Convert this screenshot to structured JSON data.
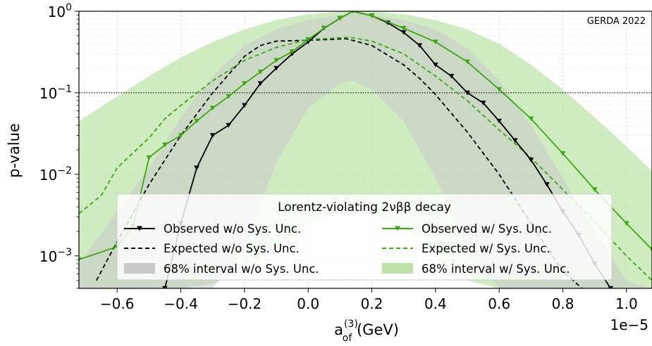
{
  "chart_data": {
    "type": "line",
    "annotation": "GERDA 2022",
    "xlabel": "a",
    "xlabel_sup": "(3)",
    "xlabel_sub": "of",
    "xlabel_unit": " (GeV)",
    "ylabel": "p-value",
    "x_offset_label": "1e−5",
    "xlim": [
      -0.72,
      1.08
    ],
    "ylim": [
      0.0004,
      1.0
    ],
    "yscale": "log",
    "xticks": [
      -0.6,
      -0.4,
      -0.2,
      0.0,
      0.2,
      0.4,
      0.6,
      0.8,
      1.0
    ],
    "xtick_labels": [
      "−0.6",
      "−0.4",
      "−0.2",
      "0.0",
      "0.2",
      "0.4",
      "0.6",
      "0.8",
      "1.0"
    ],
    "yticks": [
      {
        "value": 1,
        "base": "10",
        "exp": "0"
      },
      {
        "value": 0.1,
        "base": "10",
        "exp": "−1"
      },
      {
        "value": 0.01,
        "base": "10",
        "exp": "−2"
      },
      {
        "value": 0.001,
        "base": "10",
        "exp": "−3"
      }
    ],
    "threshold_line": 0.1,
    "grid": true,
    "legend": {
      "title": "Lorentz-violating 2νββ decay",
      "placement": "lower-center",
      "entries": [
        {
          "label": "Observed w/o Sys. Unc.",
          "style": "line-marker",
          "color": "#000000"
        },
        {
          "label": "Observed w/ Sys. Unc.",
          "style": "line-marker",
          "color": "#3aa80f"
        },
        {
          "label": "Expected w/o Sys. Unc.",
          "style": "dashed",
          "color": "#000000"
        },
        {
          "label": "Expected w/ Sys. Unc.",
          "style": "dashed",
          "color": "#3aa80f"
        },
        {
          "label": "68% interval w/o Sys. Unc.",
          "style": "band",
          "color": "#c8c8c8"
        },
        {
          "label": "68% interval w/ Sys. Unc.",
          "style": "band",
          "color": "#bde3a8"
        }
      ]
    },
    "bands": [
      {
        "name": "68% interval w/ Sys. Unc.",
        "color": "#bde3a8",
        "opacity": 0.72,
        "x": [
          -0.72,
          -0.6,
          -0.5,
          -0.4,
          -0.3,
          -0.2,
          -0.1,
          0.0,
          0.1,
          0.14,
          0.2,
          0.3,
          0.4,
          0.5,
          0.6,
          0.7,
          0.8,
          0.9,
          1.0,
          1.08
        ],
        "upper": [
          0.045,
          0.09,
          0.16,
          0.27,
          0.42,
          0.6,
          0.78,
          0.92,
          0.99,
          1.0,
          0.99,
          0.92,
          0.78,
          0.6,
          0.4,
          0.22,
          0.11,
          0.05,
          0.022,
          0.011
        ],
        "lower": [
          0.0004,
          0.0004,
          0.0004,
          0.0004,
          0.00045,
          0.0007,
          0.0013,
          0.0024,
          0.0035,
          0.0038,
          0.0033,
          0.0022,
          0.0011,
          0.0005,
          0.0004,
          0.0004,
          0.0004,
          0.0004,
          0.0004,
          0.0004
        ]
      },
      {
        "name": "68% interval w/o Sys. Unc.",
        "color": "#c8c8c8",
        "opacity": 0.55,
        "x": [
          -0.72,
          -0.6,
          -0.5,
          -0.4,
          -0.3,
          -0.2,
          -0.1,
          0.0,
          0.1,
          0.14,
          0.2,
          0.3,
          0.4,
          0.5,
          0.6,
          0.7,
          0.8,
          0.9,
          1.0,
          1.08
        ],
        "upper": [
          0.0008,
          0.0035,
          0.012,
          0.05,
          0.16,
          0.38,
          0.6,
          0.78,
          0.9,
          0.93,
          0.9,
          0.78,
          0.6,
          0.35,
          0.14,
          0.04,
          0.009,
          0.002,
          0.0005,
          0.0004
        ],
        "lower": [
          0.0004,
          0.0004,
          0.0004,
          0.0004,
          0.0004,
          0.0012,
          0.014,
          0.065,
          0.13,
          0.14,
          0.11,
          0.045,
          0.009,
          0.0013,
          0.0004,
          0.0004,
          0.0004,
          0.0004,
          0.0004,
          0.0004
        ]
      }
    ],
    "series": [
      {
        "name": "Expected w/o Sys. Unc.",
        "color": "#000000",
        "dashed": true,
        "markers": false,
        "x": [
          -0.665,
          -0.6,
          -0.5,
          -0.4,
          -0.3,
          -0.2,
          -0.15,
          -0.1,
          0.0,
          0.12,
          0.2,
          0.3,
          0.35,
          0.4,
          0.5,
          0.6,
          0.7,
          0.8,
          0.86
        ],
        "y": [
          0.0005,
          0.0015,
          0.0075,
          0.03,
          0.1,
          0.28,
          0.38,
          0.43,
          0.44,
          0.46,
          0.38,
          0.22,
          0.15,
          0.095,
          0.033,
          0.01,
          0.0025,
          0.00065,
          0.0004
        ]
      },
      {
        "name": "Expected w/ Sys. Unc.",
        "color": "#3aa80f",
        "dashed": true,
        "markers": false,
        "x": [
          -0.72,
          -0.65,
          -0.6,
          -0.5,
          -0.45,
          -0.4,
          -0.3,
          -0.2,
          -0.1,
          0.0,
          0.13,
          0.2,
          0.3,
          0.4,
          0.5,
          0.6,
          0.7,
          0.8,
          0.9,
          1.0,
          1.08
        ],
        "y": [
          0.0033,
          0.0055,
          0.012,
          0.028,
          0.048,
          0.07,
          0.14,
          0.25,
          0.36,
          0.45,
          0.48,
          0.43,
          0.3,
          0.16,
          0.08,
          0.035,
          0.016,
          0.0065,
          0.0026,
          0.001,
          0.0005
        ]
      },
      {
        "name": "Observed w/o Sys. Unc.",
        "color": "#000000",
        "dashed": false,
        "markers": true,
        "x": [
          -0.45,
          -0.4,
          -0.35,
          -0.3,
          -0.25,
          -0.2,
          -0.15,
          -0.1,
          -0.05,
          0.0,
          0.05,
          0.1,
          0.14,
          0.2,
          0.25,
          0.3,
          0.35,
          0.4,
          0.45,
          0.5,
          0.55,
          0.6,
          0.65,
          0.7,
          0.75,
          0.8,
          0.85,
          0.9,
          0.95
        ],
        "y": [
          0.0004,
          0.0025,
          0.012,
          0.03,
          0.04,
          0.07,
          0.13,
          0.2,
          0.3,
          0.42,
          0.62,
          0.82,
          1.0,
          0.88,
          0.72,
          0.55,
          0.38,
          0.22,
          0.16,
          0.1,
          0.075,
          0.045,
          0.026,
          0.015,
          0.0075,
          0.0035,
          0.0018,
          0.0008,
          0.0004
        ]
      },
      {
        "name": "Observed w/ Sys. Unc.",
        "color": "#3aa80f",
        "dashed": false,
        "markers": true,
        "x": [
          -0.72,
          -0.6,
          -0.55,
          -0.5,
          -0.45,
          -0.4,
          -0.35,
          -0.3,
          -0.25,
          -0.2,
          -0.15,
          -0.1,
          -0.05,
          0.0,
          0.05,
          0.1,
          0.14,
          0.2,
          0.3,
          0.4,
          0.5,
          0.6,
          0.7,
          0.8,
          0.9,
          1.0,
          1.08
        ],
        "y": [
          0.0009,
          0.0013,
          0.0023,
          0.016,
          0.023,
          0.03,
          0.045,
          0.065,
          0.09,
          0.13,
          0.18,
          0.25,
          0.32,
          0.45,
          0.62,
          0.82,
          1.0,
          0.88,
          0.62,
          0.42,
          0.24,
          0.11,
          0.048,
          0.018,
          0.0065,
          0.0025,
          0.0012
        ]
      }
    ]
  }
}
